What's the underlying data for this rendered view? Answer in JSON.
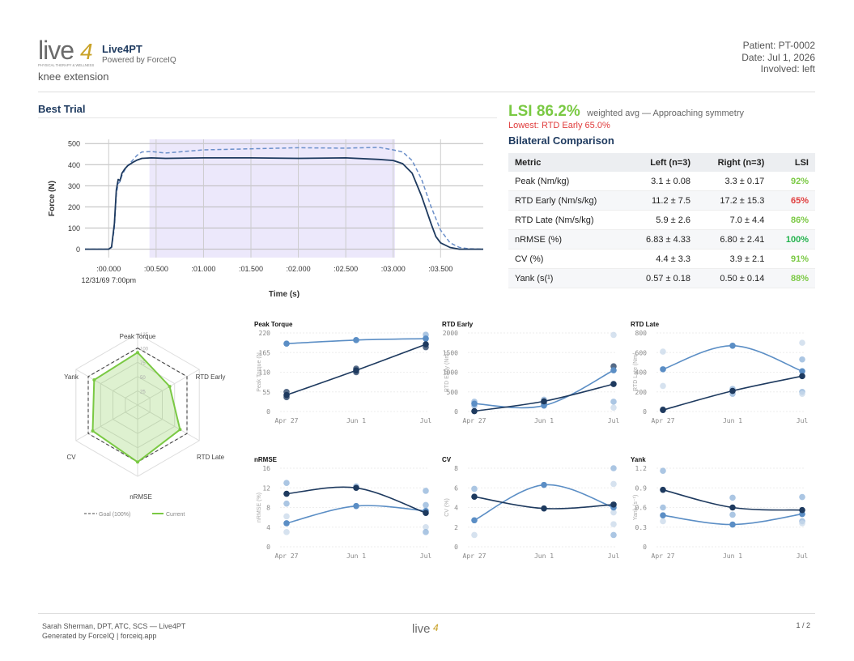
{
  "header": {
    "logo_text": "live4",
    "logo_tagline": "PHYSICAL THERAPY & WELLNESS",
    "brand_name": "Live4PT",
    "brand_sub": "Powered by ForceIQ",
    "exercise": "knee extension",
    "patient": "Patient: PT-0002",
    "date": "Date: Jul 1, 2026",
    "involved": "Involved: left"
  },
  "best_trial": {
    "title": "Best Trial"
  },
  "summary": {
    "lsi_value": "LSI 86.2%",
    "lsi_desc": "weighted avg — Approaching symmetry",
    "lowest": "Lowest: RTD Early 65.0%"
  },
  "bilateral": {
    "title": "Bilateral Comparison",
    "headers": [
      "Metric",
      "Left (n=3)",
      "Right (n=3)",
      "LSI"
    ],
    "rows": [
      {
        "metric": "Peak (Nm/kg)",
        "left": "3.1 ± 0.08",
        "right": "3.3 ± 0.17",
        "lsi": "92%",
        "color": "#7ac943"
      },
      {
        "metric": "RTD Early (Nm/s/kg)",
        "left": "11.2 ± 7.5",
        "right": "17.2 ± 15.3",
        "lsi": "65%",
        "color": "#e03c3c"
      },
      {
        "metric": "RTD Late (Nm/s/kg)",
        "left": "5.9 ± 2.6",
        "right": "7.0 ± 4.4",
        "lsi": "86%",
        "color": "#7ac943"
      },
      {
        "metric": "nRMSE (%)",
        "left": "6.83 ± 4.33",
        "right": "6.80 ± 2.41",
        "lsi": "100%",
        "color": "#22b24c"
      },
      {
        "metric": "CV (%)",
        "left": "4.4 ± 3.3",
        "right": "3.9 ± 2.1",
        "lsi": "91%",
        "color": "#7ac943"
      },
      {
        "metric": "Yank (s(¹)",
        "left": "0.57 ± 0.18",
        "right": "0.50 ± 0.14",
        "lsi": "88%",
        "color": "#7ac943"
      }
    ]
  },
  "footer": {
    "line1": "Sarah Sherman, DPT, ATC, SCS — Live4PT",
    "line2": "Generated by ForceIQ | forceiq.app",
    "page": "1 / 2"
  },
  "chart_data": [
    {
      "id": "force-time",
      "type": "line",
      "xlabel": "Time (s)",
      "ylabel": "Force (N)",
      "xlim": [
        -0.25,
        3.95
      ],
      "ylim": [
        -40,
        520
      ],
      "y_ticks": [
        0,
        100,
        200,
        300,
        400,
        500
      ],
      "x_ticks": [
        0.0,
        0.5,
        1.0,
        1.5,
        2.0,
        2.5,
        3.0,
        3.5
      ],
      "x_tick_labels": [
        ":00.000",
        ":00.500",
        ":01.000",
        ":01.500",
        ":02.000",
        ":02.500",
        ":03.000",
        ":03.500"
      ],
      "x_sub_label": "12/31/69 7:00pm",
      "shaded_window": [
        0.43,
        3.02
      ],
      "grid": true,
      "series": [
        {
          "style": "solid",
          "color": "#1e3a5f",
          "x": [
            -0.25,
            0.0,
            0.03,
            0.06,
            0.08,
            0.1,
            0.12,
            0.14,
            0.17,
            0.2,
            0.25,
            0.3,
            0.35,
            0.45,
            0.6,
            1.0,
            1.5,
            2.0,
            2.5,
            2.85,
            3.0,
            3.1,
            3.2,
            3.3,
            3.4,
            3.45,
            3.5,
            3.6,
            3.7,
            3.95
          ],
          "y": [
            0,
            0,
            10,
            120,
            280,
            330,
            325,
            360,
            380,
            395,
            410,
            422,
            430,
            432,
            430,
            432,
            432,
            430,
            432,
            425,
            420,
            405,
            360,
            250,
            120,
            60,
            30,
            8,
            0,
            0
          ]
        },
        {
          "style": "dashed",
          "color": "#6b8fc9",
          "x": [
            -0.25,
            0.0,
            0.03,
            0.06,
            0.08,
            0.1,
            0.12,
            0.14,
            0.17,
            0.2,
            0.25,
            0.3,
            0.35,
            0.45,
            0.6,
            1.0,
            1.5,
            2.0,
            2.5,
            2.85,
            3.0,
            3.1,
            3.2,
            3.3,
            3.4,
            3.5,
            3.6,
            3.7,
            3.8,
            3.95
          ],
          "y": [
            0,
            0,
            8,
            100,
            260,
            310,
            320,
            350,
            375,
            395,
            420,
            445,
            460,
            462,
            455,
            470,
            475,
            480,
            478,
            482,
            470,
            460,
            420,
            330,
            200,
            90,
            30,
            8,
            2,
            0
          ]
        }
      ]
    },
    {
      "id": "radar",
      "type": "radar",
      "axes": [
        "Peak Torque",
        "RTD Early",
        "RTD Late",
        "nRMSE",
        "CV",
        "Yank"
      ],
      "ring_labels": [
        "25",
        "50",
        "75",
        "100",
        "125"
      ],
      "max": 125,
      "series": [
        {
          "name": "Goal (100%)",
          "values": [
            100,
            100,
            100,
            100,
            100,
            100
          ],
          "color": "#444",
          "style": "dashed"
        },
        {
          "name": "Current",
          "values": [
            92,
            65,
            86,
            100,
            91,
            88
          ],
          "color": "#7ac943",
          "style": "solid"
        }
      ]
    },
    {
      "id": "peak-torque",
      "type": "line",
      "title": "Peak Torque",
      "ylabel": "Peak Torque (N",
      "categories": [
        "Apr 27",
        "Jun 1",
        "Jul"
      ],
      "ylim": [
        0,
        220
      ],
      "y_ticks": [
        0,
        55,
        110,
        165,
        220
      ],
      "series": [
        {
          "values": [
            46,
            115,
            188
          ],
          "color": "#1e3a5f"
        },
        {
          "values": [
            190,
            200,
            204
          ],
          "color": "#5b8ec5"
        }
      ],
      "scatter": [
        {
          "x": 0,
          "y": 40,
          "c": "#1e3a5f"
        },
        {
          "x": 0,
          "y": 55,
          "c": "#1e3a5f"
        },
        {
          "x": 1,
          "y": 110,
          "c": "#1e3a5f"
        },
        {
          "x": 1,
          "y": 120,
          "c": "#1e3a5f"
        },
        {
          "x": 2,
          "y": 180,
          "c": "#1e3a5f"
        },
        {
          "x": 2,
          "y": 205,
          "c": "#8fb3d9"
        },
        {
          "x": 2,
          "y": 215,
          "c": "#8fb3d9"
        }
      ]
    },
    {
      "id": "rtd-early",
      "type": "line",
      "title": "RTD Early",
      "ylabel": "RTD Early (Nm/",
      "categories": [
        "Apr 27",
        "Jun 1",
        "Jul"
      ],
      "ylim": [
        0,
        2000
      ],
      "y_ticks": [
        0,
        500,
        1000,
        1500,
        2000
      ],
      "series": [
        {
          "values": [
            10,
            260,
            700
          ],
          "color": "#1e3a5f"
        },
        {
          "values": [
            200,
            150,
            1050
          ],
          "color": "#5b8ec5"
        }
      ],
      "scatter": [
        {
          "x": 0,
          "y": 150,
          "c": "#8fb3d9"
        },
        {
          "x": 0,
          "y": 250,
          "c": "#8fb3d9"
        },
        {
          "x": 1,
          "y": 300,
          "c": "#8fb3d9"
        },
        {
          "x": 1,
          "y": 200,
          "c": "#1e3a5f"
        },
        {
          "x": 2,
          "y": 1950,
          "c": "#c8d8ea"
        },
        {
          "x": 2,
          "y": 1150,
          "c": "#1e3a5f"
        },
        {
          "x": 2,
          "y": 250,
          "c": "#8fb3d9"
        },
        {
          "x": 2,
          "y": 100,
          "c": "#c8d8ea"
        }
      ]
    },
    {
      "id": "rtd-late",
      "type": "line",
      "title": "RTD Late",
      "ylabel": "RTD Late (Nm/",
      "categories": [
        "Apr 27",
        "Jun 1",
        "Jul"
      ],
      "ylim": [
        0,
        800
      ],
      "y_ticks": [
        0,
        200,
        400,
        600,
        800
      ],
      "series": [
        {
          "values": [
            15,
            210,
            360
          ],
          "color": "#1e3a5f"
        },
        {
          "values": [
            430,
            670,
            410
          ],
          "color": "#5b8ec5"
        }
      ],
      "scatter": [
        {
          "x": 0,
          "y": 610,
          "c": "#c8d8ea"
        },
        {
          "x": 0,
          "y": 260,
          "c": "#c8d8ea"
        },
        {
          "x": 0,
          "y": 20,
          "c": "#1e3a5f"
        },
        {
          "x": 1,
          "y": 230,
          "c": "#8fb3d9"
        },
        {
          "x": 1,
          "y": 180,
          "c": "#8fb3d9"
        },
        {
          "x": 2,
          "y": 700,
          "c": "#c8d8ea"
        },
        {
          "x": 2,
          "y": 530,
          "c": "#8fb3d9"
        },
        {
          "x": 2,
          "y": 200,
          "c": "#8fb3d9"
        },
        {
          "x": 2,
          "y": 180,
          "c": "#c8d8ea"
        }
      ]
    },
    {
      "id": "nrmse",
      "type": "line",
      "title": "nRMSE",
      "ylabel": "nRMSE (%)",
      "categories": [
        "Apr 27",
        "Jun 1",
        "Jul"
      ],
      "ylim": [
        0,
        16
      ],
      "y_ticks": [
        0,
        4,
        8,
        12,
        16
      ],
      "series": [
        {
          "values": [
            10.8,
            12.0,
            6.9
          ],
          "color": "#1e3a5f"
        },
        {
          "values": [
            4.8,
            8.3,
            7.3
          ],
          "color": "#5b8ec5"
        }
      ],
      "scatter": [
        {
          "x": 0,
          "y": 13,
          "c": "#8fb3d9"
        },
        {
          "x": 0,
          "y": 8.8,
          "c": "#8fb3d9"
        },
        {
          "x": 0,
          "y": 6.2,
          "c": "#c8d8ea"
        },
        {
          "x": 0,
          "y": 3.0,
          "c": "#c8d8ea"
        },
        {
          "x": 1,
          "y": 12.3,
          "c": "#8fb3d9"
        },
        {
          "x": 2,
          "y": 11.4,
          "c": "#8fb3d9"
        },
        {
          "x": 2,
          "y": 8.5,
          "c": "#8fb3d9"
        },
        {
          "x": 2,
          "y": 4.0,
          "c": "#c8d8ea"
        },
        {
          "x": 2,
          "y": 3.0,
          "c": "#8fb3d9"
        }
      ]
    },
    {
      "id": "cv",
      "type": "line",
      "title": "CV",
      "ylabel": "CV (%)",
      "categories": [
        "Apr 27",
        "Jun 1",
        "Jul"
      ],
      "ylim": [
        0,
        8
      ],
      "y_ticks": [
        0,
        2,
        4,
        6,
        8
      ],
      "series": [
        {
          "values": [
            5.1,
            3.9,
            4.3
          ],
          "color": "#1e3a5f"
        },
        {
          "values": [
            2.7,
            6.3,
            4.0
          ],
          "color": "#5b8ec5"
        }
      ],
      "scatter": [
        {
          "x": 0,
          "y": 5.9,
          "c": "#8fb3d9"
        },
        {
          "x": 0,
          "y": 1.2,
          "c": "#c8d8ea"
        },
        {
          "x": 2,
          "y": 8.0,
          "c": "#8fb3d9"
        },
        {
          "x": 2,
          "y": 6.4,
          "c": "#c8d8ea"
        },
        {
          "x": 2,
          "y": 3.5,
          "c": "#c8d8ea"
        },
        {
          "x": 2,
          "y": 2.3,
          "c": "#c8d8ea"
        },
        {
          "x": 2,
          "y": 1.2,
          "c": "#8fb3d9"
        }
      ]
    },
    {
      "id": "yank",
      "type": "line",
      "title": "Yank",
      "ylabel": "Yank (s⁻¹)",
      "categories": [
        "Apr 27",
        "Jun 1",
        "Jul"
      ],
      "ylim": [
        0,
        1.2
      ],
      "y_ticks": [
        0,
        0.3,
        0.6,
        0.9,
        1.2
      ],
      "y_tick_labels": [
        "0",
        "0.3",
        "0.6",
        "0.9",
        "1.2"
      ],
      "series": [
        {
          "values": [
            0.87,
            0.6,
            0.56
          ],
          "color": "#1e3a5f"
        },
        {
          "values": [
            0.48,
            0.34,
            0.5
          ],
          "color": "#5b8ec5"
        }
      ],
      "scatter": [
        {
          "x": 0,
          "y": 1.16,
          "c": "#8fb3d9"
        },
        {
          "x": 0,
          "y": 0.6,
          "c": "#8fb3d9"
        },
        {
          "x": 0,
          "y": 0.39,
          "c": "#c8d8ea"
        },
        {
          "x": 1,
          "y": 0.75,
          "c": "#8fb3d9"
        },
        {
          "x": 1,
          "y": 0.49,
          "c": "#8fb3d9"
        },
        {
          "x": 2,
          "y": 0.76,
          "c": "#8fb3d9"
        },
        {
          "x": 2,
          "y": 0.39,
          "c": "#8fb3d9"
        },
        {
          "x": 2,
          "y": 0.36,
          "c": "#c8d8ea"
        }
      ]
    }
  ]
}
